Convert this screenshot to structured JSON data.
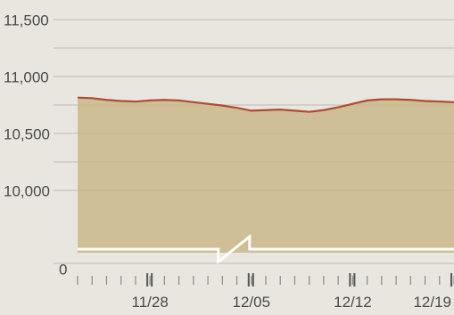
{
  "chart_data": {
    "type": "area",
    "title": "",
    "xlabel": "",
    "ylabel": "",
    "y_tick_labels": [
      "11,500",
      "11,000",
      "10,500",
      "10,000",
      "0"
    ],
    "y_tick_values": [
      11500,
      11000,
      10500,
      10000,
      0
    ],
    "x_tick_labels": [
      "11/28",
      "12/05",
      "12/12",
      "12/19"
    ],
    "y_axis_break": true,
    "ylim": [
      10000,
      11500
    ],
    "grid": true,
    "x": [
      "11/23",
      "11/24",
      "11/25",
      "11/26",
      "11/27",
      "11/28",
      "11/29",
      "11/30",
      "12/01",
      "12/02",
      "12/03",
      "12/04",
      "12/05",
      "12/06",
      "12/07",
      "12/08",
      "12/09",
      "12/10",
      "12/11",
      "12/12",
      "12/13",
      "12/14",
      "12/15",
      "12/16",
      "12/17",
      "12/18",
      "12/19"
    ],
    "series": [
      {
        "values": [
          10815,
          10810,
          10795,
          10785,
          10780,
          10790,
          10795,
          10790,
          10775,
          10760,
          10745,
          10725,
          10700,
          10705,
          10710,
          10700,
          10690,
          10705,
          10730,
          10760,
          10790,
          10800,
          10800,
          10795,
          10785,
          10780,
          10775
        ]
      }
    ],
    "colors": {
      "fill": "#c9b78a",
      "line": "#b04a35",
      "grid": "#d4d0c6",
      "background": "#e9e6df",
      "baseline": "#ffffff"
    }
  }
}
